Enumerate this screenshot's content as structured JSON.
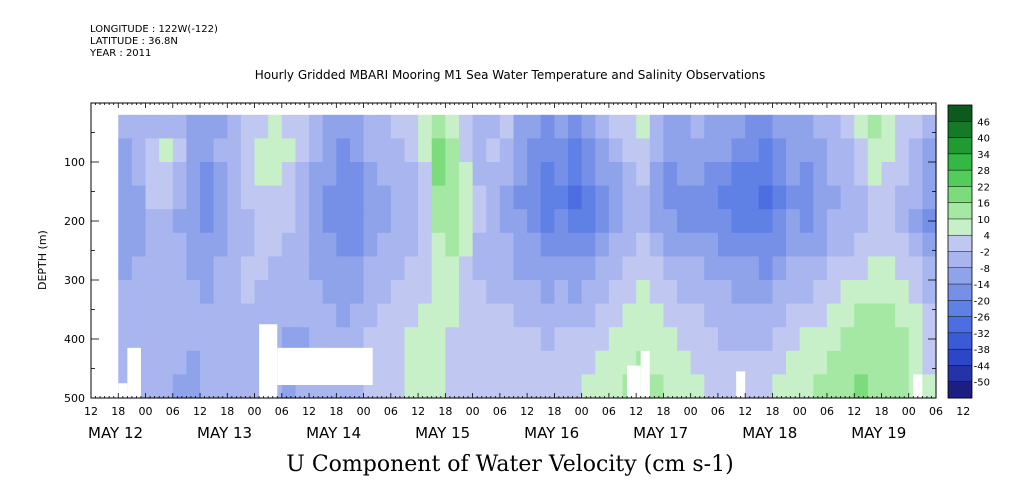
{
  "header": {
    "longitude": "LONGITUDE : 122W(-122)",
    "latitude": "LATITUDE : 36.8N",
    "year": "YEAR : 2011"
  },
  "chart_data": {
    "type": "heatmap",
    "title": "Hourly Gridded MBARI Mooring M1 Sea Water Temperature and Salinity Observations",
    "xlabel": "U Component of Water Velocity (cm s-1)",
    "ylabel": "DEPTH (m)",
    "y_range": [
      0,
      500
    ],
    "y_inverted": true,
    "y_ticks": [
      100,
      200,
      300,
      400,
      500
    ],
    "x_range_hours": [
      0,
      186
    ],
    "x_tick_labels": [
      "12",
      "18",
      "00",
      "06",
      "12",
      "18",
      "00",
      "06",
      "12",
      "18",
      "00",
      "06",
      "12",
      "18",
      "00",
      "06",
      "12",
      "18",
      "00",
      "06",
      "12",
      "18",
      "00",
      "06",
      "12",
      "18",
      "00",
      "06",
      "12",
      "18",
      "00",
      "06",
      "12"
    ],
    "date_labels": [
      {
        "label": "MAY 12",
        "hour": 0
      },
      {
        "label": "MAY 13",
        "hour": 24
      },
      {
        "label": "MAY 14",
        "hour": 48
      },
      {
        "label": "MAY 15",
        "hour": 72
      },
      {
        "label": "MAY 16",
        "hour": 96
      },
      {
        "label": "MAY 17",
        "hour": 120
      },
      {
        "label": "MAY 18",
        "hour": 144
      },
      {
        "label": "MAY 19",
        "hour": 168
      }
    ],
    "colorbar": {
      "levels": [
        -50,
        -44,
        -38,
        -32,
        -26,
        -20,
        -14,
        -8,
        -2,
        4,
        10,
        16,
        22,
        28,
        34,
        40,
        46
      ],
      "level_labels": [
        "-50",
        "-44",
        "-38",
        "-32",
        "-26",
        "-20",
        "-14",
        "-8",
        "-2",
        "4",
        "10",
        "16",
        "22",
        "28",
        "34",
        "40",
        "46"
      ],
      "colors": [
        "#1c1f80",
        "#2434a8",
        "#2c46c8",
        "#3b5ad8",
        "#4c6ee0",
        "#5f80e4",
        "#7690e8",
        "#8ea3ea",
        "#a8b5ee",
        "#c0c8f2",
        "#c8f0c8",
        "#a4e8a4",
        "#7cdc7c",
        "#54cc5c",
        "#34b843",
        "#229a34",
        "#157a28",
        "#0e5a1e"
      ]
    },
    "data_start_hour": 6,
    "values": [
      [
        -8,
        -8,
        -5,
        -3,
        -8,
        -12,
        -14,
        -10,
        -6,
        -2,
        2,
        4,
        2,
        -2,
        -6,
        -10,
        -14,
        -10,
        -6,
        -4,
        -2,
        0,
        6,
        12,
        4,
        -2,
        -8,
        -4,
        -2,
        -10,
        -14,
        -16,
        -14,
        -18,
        -12,
        -6,
        -2,
        2,
        4,
        -6,
        -12,
        -10,
        -8,
        -10,
        -12,
        -14,
        -16,
        -20,
        -14,
        -10,
        -12,
        -8,
        -4,
        -2,
        4,
        10,
        8,
        2,
        -2,
        -8
      ],
      [
        -10,
        -6,
        2,
        4,
        -2,
        -10,
        -14,
        -8,
        -4,
        2,
        6,
        6,
        4,
        -2,
        -8,
        -12,
        -16,
        -14,
        -8,
        -6,
        -4,
        -2,
        4,
        16,
        10,
        2,
        -6,
        -2,
        -4,
        -12,
        -18,
        -20,
        -18,
        -22,
        -16,
        -10,
        -6,
        0,
        2,
        -8,
        -14,
        -12,
        -10,
        -12,
        -14,
        -18,
        -20,
        -22,
        -18,
        -12,
        -14,
        -10,
        -6,
        -4,
        2,
        6,
        4,
        0,
        -4,
        -10
      ],
      [
        -12,
        -8,
        0,
        2,
        -6,
        -12,
        -16,
        -10,
        -6,
        0,
        4,
        4,
        2,
        -4,
        -10,
        -14,
        -18,
        -16,
        -10,
        -8,
        -6,
        -4,
        2,
        18,
        12,
        4,
        -4,
        -6,
        -8,
        -14,
        -18,
        -22,
        -20,
        -26,
        -20,
        -14,
        -10,
        -4,
        -2,
        -10,
        -16,
        -14,
        -14,
        -16,
        -18,
        -22,
        -24,
        -26,
        -20,
        -14,
        -16,
        -12,
        -8,
        -6,
        0,
        4,
        2,
        -2,
        -6,
        -12
      ],
      [
        -14,
        -10,
        -2,
        0,
        -8,
        -14,
        -18,
        -12,
        -8,
        -2,
        2,
        2,
        0,
        -6,
        -12,
        -16,
        -20,
        -18,
        -12,
        -10,
        -8,
        -6,
        0,
        14,
        14,
        6,
        -2,
        -8,
        -10,
        -16,
        -20,
        -24,
        -22,
        -28,
        -24,
        -18,
        -14,
        -8,
        -6,
        -12,
        -18,
        -18,
        -18,
        -20,
        -22,
        -24,
        -26,
        -28,
        -22,
        -16,
        -18,
        -14,
        -10,
        -8,
        -4,
        2,
        0,
        -4,
        -8,
        -14
      ],
      [
        -14,
        -12,
        -6,
        -4,
        -10,
        -14,
        -16,
        -12,
        -8,
        -4,
        0,
        0,
        -2,
        -8,
        -14,
        -16,
        -20,
        -18,
        -12,
        -10,
        -8,
        -6,
        -2,
        10,
        12,
        6,
        -2,
        -8,
        -10,
        -14,
        -18,
        -22,
        -20,
        -24,
        -22,
        -18,
        -12,
        -8,
        -6,
        -10,
        -14,
        -16,
        -16,
        -18,
        -20,
        -22,
        -22,
        -24,
        -20,
        -14,
        -16,
        -12,
        -8,
        -6,
        -4,
        0,
        -2,
        -6,
        -10,
        -16
      ],
      [
        -12,
        -10,
        -6,
        -4,
        -8,
        -12,
        -14,
        -10,
        -6,
        -4,
        -2,
        -2,
        -4,
        -8,
        -12,
        -14,
        -18,
        -16,
        -10,
        -8,
        -6,
        -4,
        -2,
        8,
        10,
        4,
        -4,
        -8,
        -8,
        -12,
        -14,
        -18,
        -16,
        -20,
        -18,
        -14,
        -8,
        -4,
        -2,
        -6,
        -10,
        -12,
        -12,
        -14,
        -16,
        -18,
        -18,
        -20,
        -16,
        -12,
        -12,
        -10,
        -6,
        -4,
        -2,
        2,
        2,
        -2,
        -6,
        -12
      ],
      [
        -10,
        -8,
        -6,
        -4,
        -6,
        -10,
        -12,
        -8,
        -4,
        -2,
        -2,
        -4,
        -6,
        -8,
        -10,
        -12,
        -14,
        -12,
        -8,
        -6,
        -4,
        -2,
        0,
        6,
        8,
        2,
        -4,
        -6,
        -6,
        -10,
        -10,
        -14,
        -12,
        -14,
        -12,
        -8,
        -4,
        0,
        2,
        -2,
        -6,
        -8,
        -8,
        -10,
        -12,
        -14,
        -14,
        -16,
        -12,
        -8,
        -8,
        -6,
        -2,
        0,
        2,
        4,
        6,
        2,
        -2,
        -8
      ],
      [
        -8,
        -6,
        -4,
        -4,
        -6,
        -8,
        -10,
        -6,
        -4,
        -2,
        -4,
        -6,
        -6,
        -8,
        -8,
        -10,
        -12,
        -10,
        -6,
        -4,
        -2,
        0,
        2,
        4,
        6,
        2,
        -2,
        -4,
        -4,
        -6,
        -6,
        -10,
        -8,
        -10,
        -8,
        -4,
        0,
        2,
        4,
        2,
        -2,
        -4,
        -4,
        -6,
        -8,
        -10,
        -10,
        -12,
        -8,
        -4,
        -4,
        -2,
        2,
        4,
        6,
        6,
        8,
        6,
        2,
        -4
      ],
      [
        -6,
        -6,
        -4,
        -4,
        -6,
        -8,
        -8,
        -6,
        -4,
        -4,
        -6,
        -8,
        -8,
        -8,
        -8,
        -8,
        -10,
        -8,
        -4,
        -2,
        0,
        2,
        4,
        4,
        4,
        2,
        -2,
        -2,
        -2,
        -4,
        -4,
        -6,
        -4,
        -6,
        -4,
        0,
        2,
        4,
        6,
        4,
        2,
        -2,
        -2,
        -4,
        -6,
        -6,
        -6,
        -8,
        -4,
        0,
        0,
        2,
        6,
        8,
        10,
        10,
        10,
        8,
        4,
        -2
      ],
      [
        -4,
        -6,
        -6,
        -6,
        -8,
        -8,
        -8,
        -6,
        -4,
        -4,
        -6,
        -8,
        -10,
        -10,
        -8,
        -8,
        -8,
        -6,
        -2,
        0,
        2,
        4,
        4,
        4,
        2,
        0,
        -2,
        -2,
        -2,
        -2,
        -2,
        -4,
        -2,
        -2,
        0,
        2,
        4,
        6,
        8,
        6,
        4,
        2,
        0,
        -2,
        -4,
        -4,
        -4,
        -4,
        0,
        2,
        4,
        6,
        8,
        10,
        12,
        12,
        12,
        10,
        6,
        0
      ],
      [
        -4,
        -6,
        -6,
        -8,
        -8,
        -10,
        -8,
        -6,
        -4,
        -4,
        -6,
        -8,
        -10,
        -10,
        -8,
        -6,
        -6,
        -4,
        -2,
        0,
        2,
        4,
        6,
        4,
        2,
        0,
        -2,
        -2,
        -2,
        -2,
        0,
        -2,
        0,
        0,
        2,
        4,
        6,
        8,
        10,
        8,
        6,
        4,
        2,
        0,
        -2,
        -2,
        -2,
        -2,
        2,
        4,
        6,
        8,
        10,
        12,
        14,
        14,
        12,
        10,
        8,
        2
      ],
      [
        -6,
        -6,
        -8,
        -8,
        -10,
        -10,
        -8,
        -6,
        -4,
        -4,
        -6,
        -8,
        -10,
        -8,
        -6,
        -6,
        -4,
        -4,
        -2,
        0,
        2,
        4,
        6,
        4,
        2,
        0,
        -2,
        -2,
        -2,
        0,
        2,
        0,
        2,
        2,
        4,
        6,
        8,
        10,
        12,
        10,
        8,
        6,
        4,
        2,
        0,
        0,
        0,
        0,
        4,
        6,
        8,
        10,
        12,
        14,
        16,
        14,
        12,
        10,
        8,
        4
      ]
    ],
    "missing_blocks": [
      {
        "hour0": 6,
        "hour1": 8,
        "depth0": 475,
        "depth1": 500
      },
      {
        "hour0": 8,
        "hour1": 11,
        "depth0": 415,
        "depth1": 500
      },
      {
        "hour0": 37,
        "hour1": 41,
        "depth0": 375,
        "depth1": 500
      },
      {
        "hour0": 41,
        "hour1": 62,
        "depth0": 415,
        "depth1": 478
      },
      {
        "hour0": 118,
        "hour1": 121,
        "depth0": 445,
        "depth1": 500
      },
      {
        "hour0": 121,
        "hour1": 123,
        "depth0": 420,
        "depth1": 500
      },
      {
        "hour0": 142,
        "hour1": 144,
        "depth0": 455,
        "depth1": 500
      },
      {
        "hour0": 181,
        "hour1": 183,
        "depth0": 460,
        "depth1": 500
      }
    ]
  }
}
